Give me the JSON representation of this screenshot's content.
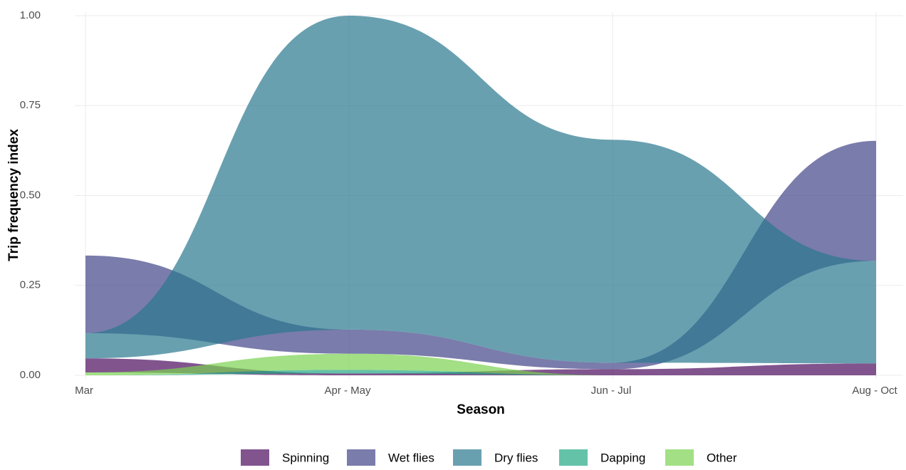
{
  "chart_data": {
    "type": "stream",
    "x_label": "Season",
    "y_label": "Trip frequency index",
    "categories": [
      "Mar",
      "Apr - May",
      "Jun - Jul",
      "Aug - Oct"
    ],
    "series": [
      {
        "name": "Spinning",
        "color": "#4b0c5e",
        "values": [
          0.039,
          0.005,
          0.017,
          0.033
        ]
      },
      {
        "name": "Wet flies",
        "color": "#414487",
        "values": [
          0.216,
          0.067,
          0.018,
          0.334
        ]
      },
      {
        "name": "Dry flies",
        "color": "#2a788e",
        "values": [
          0.07,
          0.873,
          0.62,
          0.285
        ]
      },
      {
        "name": "Dapping",
        "color": "#22a884",
        "values": [
          0,
          0.01,
          0,
          0
        ]
      },
      {
        "name": "Other",
        "color": "#7ad151",
        "values": [
          0.008,
          0.045,
          0,
          0
        ]
      }
    ],
    "stack_order": "ascending",
    "opacity": 0.7,
    "ylim": [
      0,
      1
    ],
    "yticks": [
      {
        "value": 0,
        "label": "0.00"
      },
      {
        "value": 0.25,
        "label": "0.25"
      },
      {
        "value": 0.5,
        "label": "0.50"
      },
      {
        "value": 0.75,
        "label": "0.75"
      },
      {
        "value": 1,
        "label": "1.00"
      }
    ],
    "grid": true,
    "legend": "bottom"
  }
}
